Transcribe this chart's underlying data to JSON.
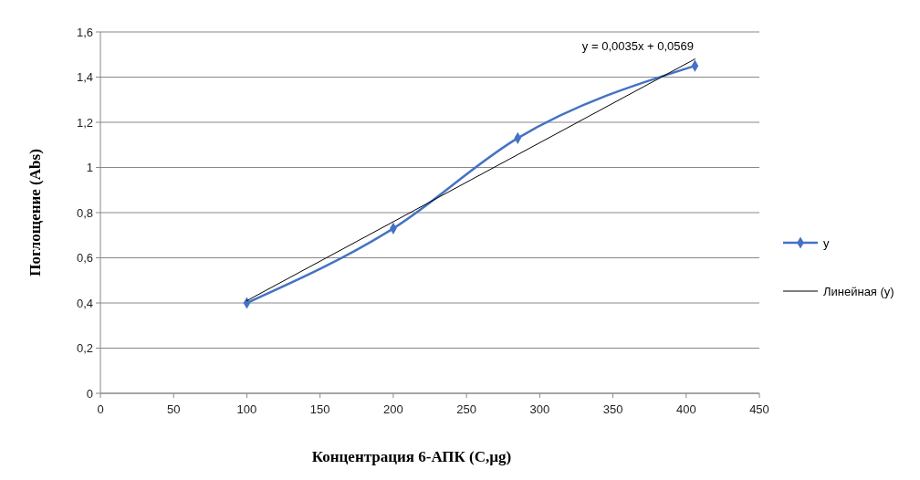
{
  "chart_data": {
    "type": "line",
    "xlabel": "Концентрация 6-АПК (С,µg)",
    "ylabel": "Поглощение  (Abs)",
    "xlim": [
      0,
      450
    ],
    "xticks": [
      0,
      50,
      100,
      150,
      200,
      250,
      300,
      350,
      400,
      450
    ],
    "ylim": [
      0,
      1.6
    ],
    "yticks": [
      0,
      {
        "value": 0.2,
        "label": "0,2"
      },
      {
        "value": 0.4,
        "label": "0,4"
      },
      {
        "value": 0.6,
        "label": "0,6"
      },
      {
        "value": 0.8,
        "label": "0,8"
      },
      1,
      {
        "value": 1.2,
        "label": "1,2"
      },
      {
        "value": 1.4,
        "label": "1,4"
      },
      {
        "value": 1.6,
        "label": "1,6"
      }
    ],
    "grid": "y",
    "legend": "right",
    "series": [
      {
        "name": "y",
        "color": "#4472c4",
        "x": [
          100,
          200,
          285,
          406
        ],
        "values": [
          0.4,
          0.73,
          1.13,
          1.45
        ],
        "marker": "diamond"
      },
      {
        "name": "Линейная (y)",
        "type": "line",
        "color": "#000000",
        "x": [
          100,
          406
        ],
        "values": [
          0.41,
          1.48
        ],
        "marker": "none"
      }
    ],
    "annotations": [
      "y = 0,0035x + 0,0569"
    ]
  }
}
